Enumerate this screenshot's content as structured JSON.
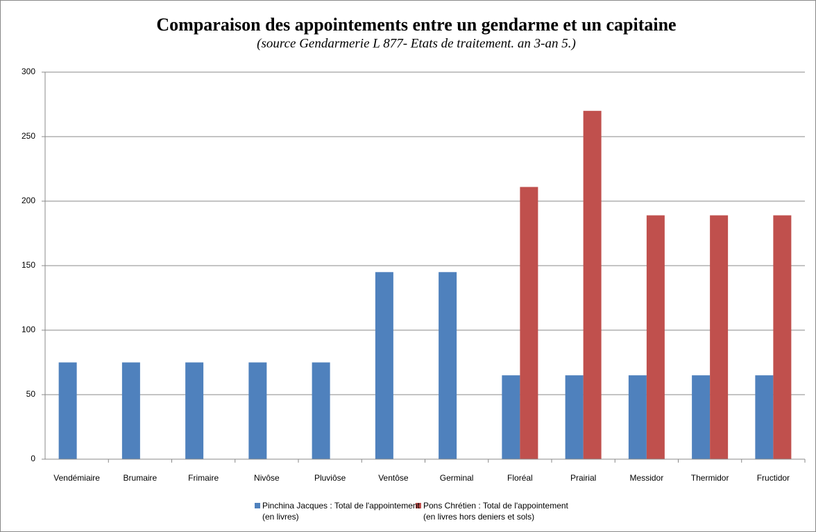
{
  "chart_data": {
    "type": "bar",
    "title": "Comparaison des  appointements entre un gendarme et un capitaine",
    "subtitle": "(source  Gendarmerie  L 877- Etats de traitement. an 3-an 5.)",
    "categories": [
      "Vendémiaire",
      "Brumaire",
      "Frimaire",
      "Nivôse",
      "Pluviôse",
      "Ventôse",
      "Germinal",
      "Floréal",
      "Prairial",
      "Messidor",
      "Thermidor",
      "Fructidor"
    ],
    "series": [
      {
        "name": "Pinchina Jacques : Total de l'appointement\n(en livres)",
        "color": "#4f81bd",
        "values": [
          75,
          75,
          75,
          75,
          75,
          145,
          145,
          65,
          65,
          65,
          65,
          65
        ]
      },
      {
        "name": "Pons Chrétien : Total de l'appointement\n(en livres hors deniers et sols)",
        "color": "#c0504d",
        "values": [
          null,
          null,
          null,
          null,
          null,
          null,
          null,
          211,
          270,
          189,
          189,
          189
        ]
      }
    ],
    "ylim": [
      0,
      300
    ],
    "yticks": [
      0,
      50,
      100,
      150,
      200,
      250,
      300
    ],
    "grid": true,
    "legend": "bottom"
  }
}
